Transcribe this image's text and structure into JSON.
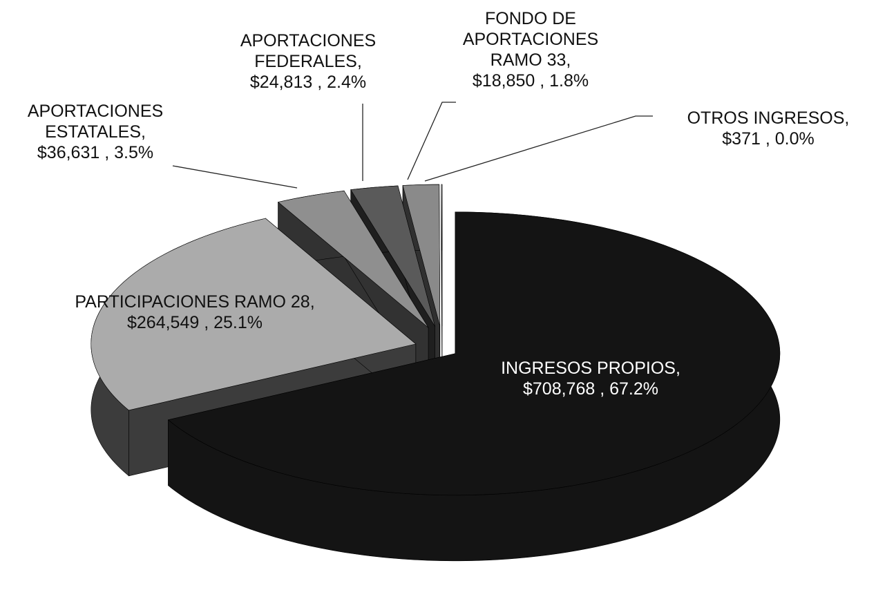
{
  "chart_data": {
    "type": "pie3d",
    "categories": [
      "INGRESOS PROPIOS,",
      "PARTICIPACIONES RAMO 28,",
      "APORTACIONES ESTATALES,",
      "APORTACIONES FEDERALES,",
      "FONDO DE APORTACIONES RAMO 33,",
      "OTROS INGRESOS,"
    ],
    "values": [
      708768,
      264549,
      36631,
      24813,
      18850,
      371
    ],
    "value_labels": [
      "$708,768",
      "$264,549",
      "$36,631",
      "$24,813",
      "$18,850",
      "$371"
    ],
    "percents": [
      67.2,
      25.1,
      3.5,
      2.4,
      1.8,
      0.0
    ],
    "percent_labels": [
      "67.2%",
      "25.1%",
      "3.5%",
      "2.4%",
      "1.8%",
      "0.0%"
    ],
    "separator": " , ",
    "colors": [
      "#141414",
      "#ababab",
      "#8f8f8f",
      "#5a5a5a",
      "#8a8a8a",
      "#ffffff"
    ]
  }
}
